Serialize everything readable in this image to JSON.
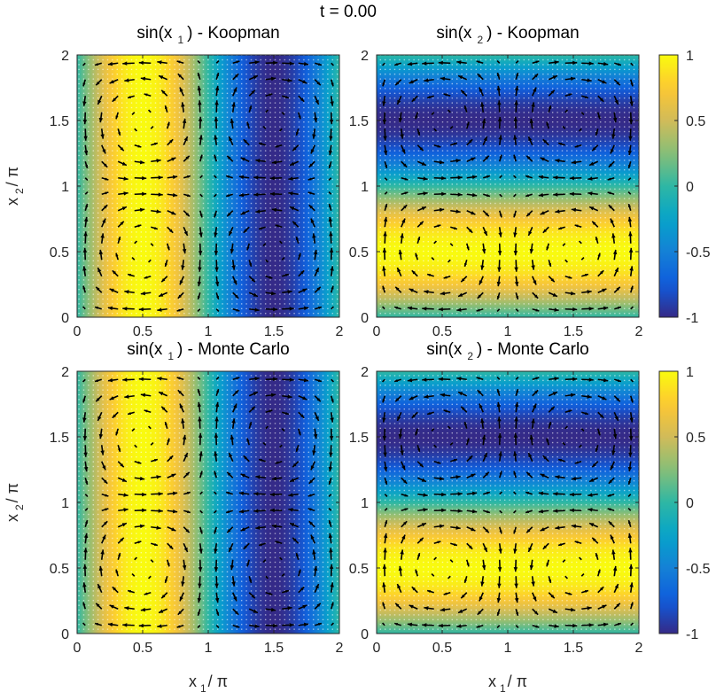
{
  "figure": {
    "time_label": "t = 0.00"
  },
  "colors": {
    "parula_stops": [
      "#352a87",
      "#0f5cdd",
      "#1481d6",
      "#06a4ca",
      "#2eb7a4",
      "#87bf77",
      "#d1bb59",
      "#fec832",
      "#f9fb0e"
    ],
    "arrow": "#000000",
    "grid_dots": "#ffffff"
  },
  "chart_data": [
    {
      "type": "heatmap",
      "title_parts": {
        "pre": "sin(x",
        "sub": "1",
        "post": ") - Koopman"
      },
      "field": "sin(x1)",
      "method": "Koopman",
      "xlabel": {
        "main": "x",
        "sub": "1",
        "tail": "/ π"
      },
      "ylabel": {
        "main": "x",
        "sub": "2",
        "tail": "/ π"
      },
      "xlim": [
        0,
        2
      ],
      "ylim": [
        0,
        2
      ],
      "xticks": [
        "0",
        "0.5",
        "1",
        "1.5",
        "2"
      ],
      "yticks": [
        "0",
        "0.5",
        "1",
        "1.5",
        "2"
      ],
      "show_xlabel": false,
      "show_ylabel": true,
      "quiver": "vortex flow, centers at (0.5, 1.0) and (1.5, 1.0)"
    },
    {
      "type": "heatmap",
      "title_parts": {
        "pre": "sin(x",
        "sub": "2",
        "post": ") - Koopman"
      },
      "field": "sin(x2)",
      "method": "Koopman",
      "xlabel": {
        "main": "x",
        "sub": "1",
        "tail": "/ π"
      },
      "ylabel": {
        "main": "x",
        "sub": "2",
        "tail": "/ π"
      },
      "xlim": [
        0,
        2
      ],
      "ylim": [
        0,
        2
      ],
      "xticks": [
        "0",
        "0.5",
        "1",
        "1.5",
        "2"
      ],
      "yticks": [
        "0",
        "0.5",
        "1",
        "1.5",
        "2"
      ],
      "show_xlabel": false,
      "show_ylabel": false,
      "colorbar": {
        "ticks": [
          "1",
          "0.5",
          "0",
          "-0.5",
          "-1"
        ],
        "clim": [
          -1,
          1
        ]
      }
    },
    {
      "type": "heatmap",
      "title_parts": {
        "pre": "sin(x",
        "sub": "1",
        "post": ") - Monte Carlo"
      },
      "field": "sin(x1)",
      "method": "Monte Carlo",
      "xlabel": {
        "main": "x",
        "sub": "1",
        "tail": "/ π"
      },
      "ylabel": {
        "main": "x",
        "sub": "2",
        "tail": "/ π"
      },
      "xlim": [
        0,
        2
      ],
      "ylim": [
        0,
        2
      ],
      "xticks": [
        "0",
        "0.5",
        "1",
        "1.5",
        "2"
      ],
      "yticks": [
        "0",
        "0.5",
        "1",
        "1.5",
        "2"
      ],
      "show_xlabel": true,
      "show_ylabel": true
    },
    {
      "type": "heatmap",
      "title_parts": {
        "pre": "sin(x",
        "sub": "2",
        "post": ") - Monte Carlo"
      },
      "field": "sin(x2)",
      "method": "Monte Carlo",
      "xlabel": {
        "main": "x",
        "sub": "1",
        "tail": "/ π"
      },
      "ylabel": {
        "main": "x",
        "sub": "2",
        "tail": "/ π"
      },
      "xlim": [
        0,
        2
      ],
      "ylim": [
        0,
        2
      ],
      "xticks": [
        "0",
        "0.5",
        "1",
        "1.5",
        "2"
      ],
      "yticks": [
        "0",
        "0.5",
        "1",
        "1.5",
        "2"
      ],
      "show_xlabel": true,
      "show_ylabel": false,
      "colorbar": {
        "ticks": [
          "1",
          "0.5",
          "0",
          "-0.5",
          "-1"
        ],
        "clim": [
          -1,
          1
        ]
      }
    }
  ]
}
